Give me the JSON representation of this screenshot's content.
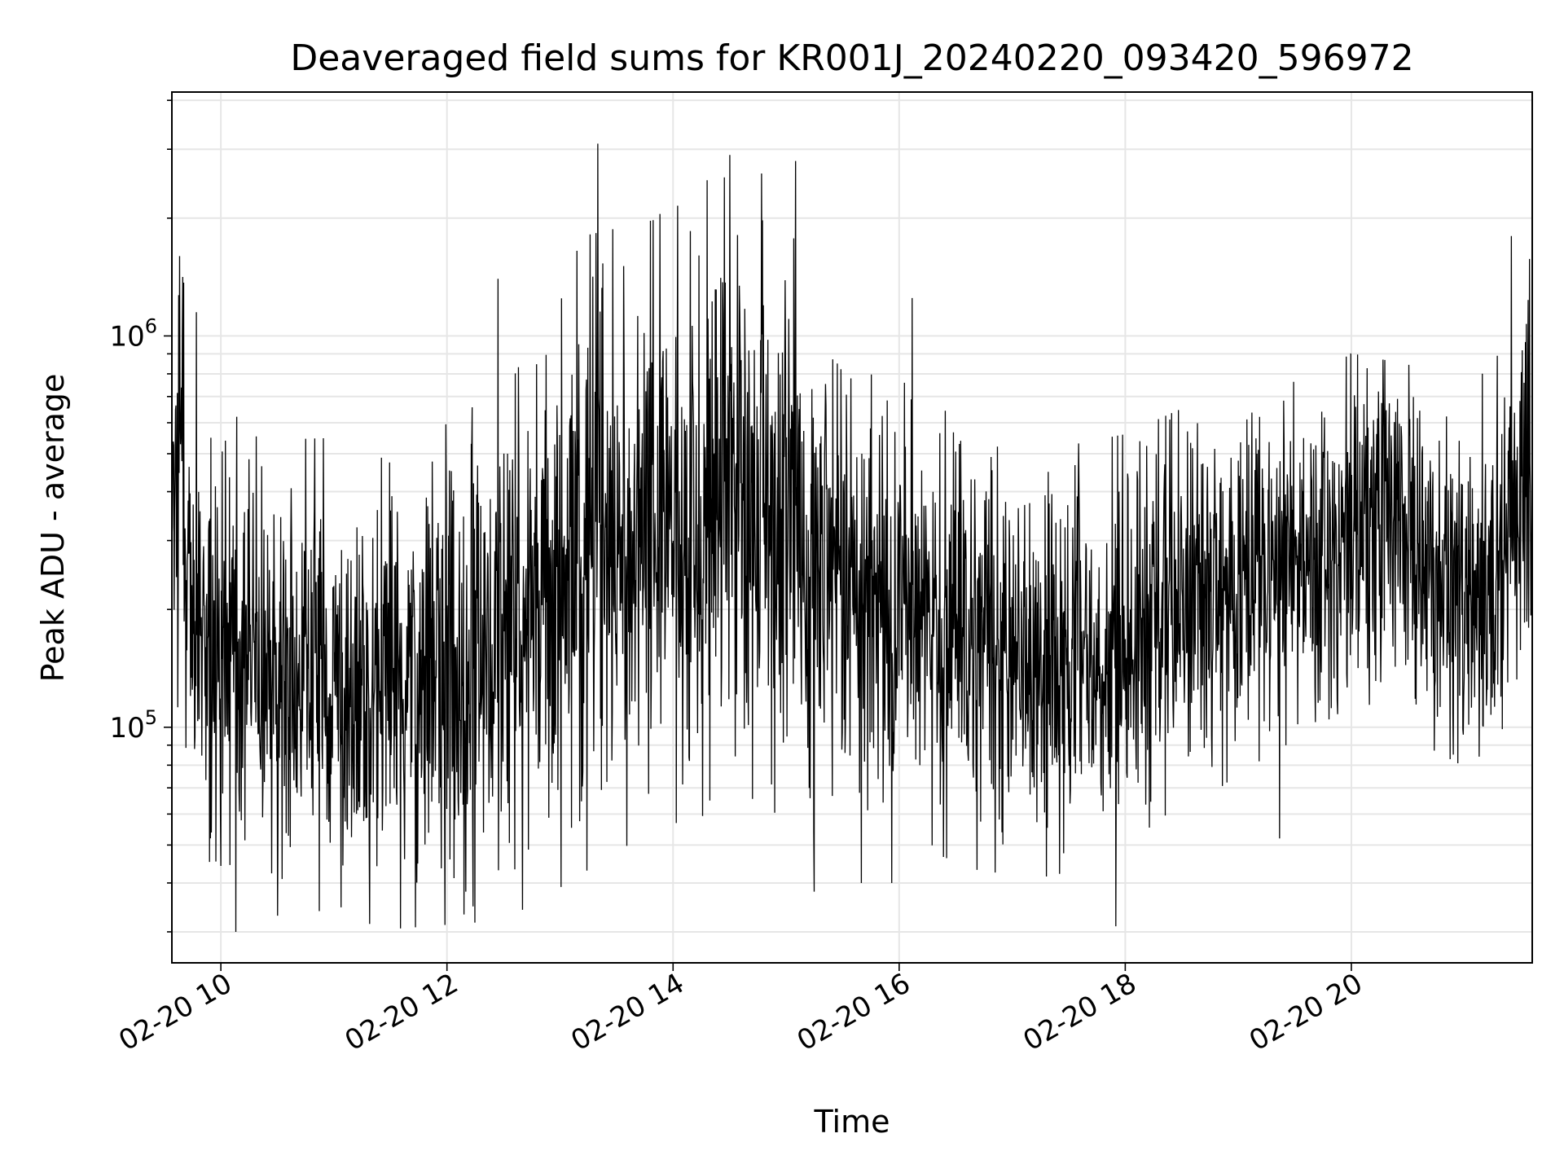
{
  "chart_data": {
    "type": "line",
    "title": "Deaveraged field sums for KR001J_20240220_093420_596972",
    "xlabel": "Time",
    "ylabel": "Peak ADU - average",
    "yscale": "log",
    "ylim": [
      25000,
      4200000
    ],
    "xlim": [
      "2024-02-20 09:34",
      "2024-02-20 21:36"
    ],
    "grid": true,
    "line_color": "#000000",
    "grid_color": "#e6e6e6",
    "x_ticks": [
      {
        "t": "2024-02-20 10:00",
        "label": "02-20 10"
      },
      {
        "t": "2024-02-20 12:00",
        "label": "02-20 12"
      },
      {
        "t": "2024-02-20 14:00",
        "label": "02-20 14"
      },
      {
        "t": "2024-02-20 16:00",
        "label": "02-20 16"
      },
      {
        "t": "2024-02-20 18:00",
        "label": "02-20 18"
      },
      {
        "t": "2024-02-20 20:00",
        "label": "02-20 20"
      }
    ],
    "y_ticks": [
      {
        "value": 100000,
        "base": "10",
        "exp": "5"
      },
      {
        "value": 1000000,
        "base": "10",
        "exp": "6"
      }
    ],
    "series": [
      {
        "n_points": 3000,
        "envelope_hours": [
          "2024-02-20 09:34",
          "2024-02-20 09:50",
          "2024-02-20 10:30",
          "2024-02-20 11:30",
          "2024-02-20 12:30",
          "2024-02-20 13:15",
          "2024-02-20 13:50",
          "2024-02-20 14:30",
          "2024-02-20 15:10",
          "2024-02-20 16:00",
          "2024-02-20 17:00",
          "2024-02-20 18:00",
          "2024-02-20 19:00",
          "2024-02-20 20:00",
          "2024-02-20 21:00",
          "2024-02-20 21:15",
          "2024-02-20 21:36"
        ],
        "median": [
          450000,
          180000,
          140000,
          130000,
          150000,
          280000,
          330000,
          400000,
          300000,
          200000,
          140000,
          160000,
          240000,
          320000,
          250000,
          230000,
          480000
        ],
        "spread_factor": [
          2.2,
          2.0,
          2.0,
          2.1,
          2.2,
          2.6,
          2.5,
          2.6,
          2.4,
          2.0,
          1.9,
          1.9,
          1.8,
          1.7,
          1.8,
          1.9,
          2.0
        ],
        "peaks": [
          {
            "t": "2024-02-20 09:38",
            "value": 1600000
          },
          {
            "t": "2024-02-20 09:47",
            "value": 1150000
          },
          {
            "t": "2024-02-20 12:27",
            "value": 1400000
          },
          {
            "t": "2024-02-20 13:09",
            "value": 1650000
          },
          {
            "t": "2024-02-20 13:20",
            "value": 3100000
          },
          {
            "t": "2024-02-20 13:53",
            "value": 2050000
          },
          {
            "t": "2024-02-20 14:18",
            "value": 2500000
          },
          {
            "t": "2024-02-20 14:30",
            "value": 2900000
          },
          {
            "t": "2024-02-20 14:47",
            "value": 2600000
          },
          {
            "t": "2024-02-20 15:05",
            "value": 2800000
          },
          {
            "t": "2024-02-20 16:07",
            "value": 1250000
          },
          {
            "t": "2024-02-20 19:00",
            "value": 480000
          },
          {
            "t": "2024-02-20 21:25",
            "value": 1800000
          }
        ],
        "troughs": [
          {
            "t": "2024-02-20 10:08",
            "value": 30000
          },
          {
            "t": "2024-02-20 10:30",
            "value": 33000
          },
          {
            "t": "2024-02-20 12:10",
            "value": 38000
          },
          {
            "t": "2024-02-20 15:15",
            "value": 38000
          },
          {
            "t": "2024-02-20 15:40",
            "value": 40000
          },
          {
            "t": "2024-02-20 15:56",
            "value": 40000
          },
          {
            "t": "2024-02-20 17:55",
            "value": 31000
          },
          {
            "t": "2024-02-20 19:22",
            "value": 52000
          }
        ]
      }
    ]
  }
}
